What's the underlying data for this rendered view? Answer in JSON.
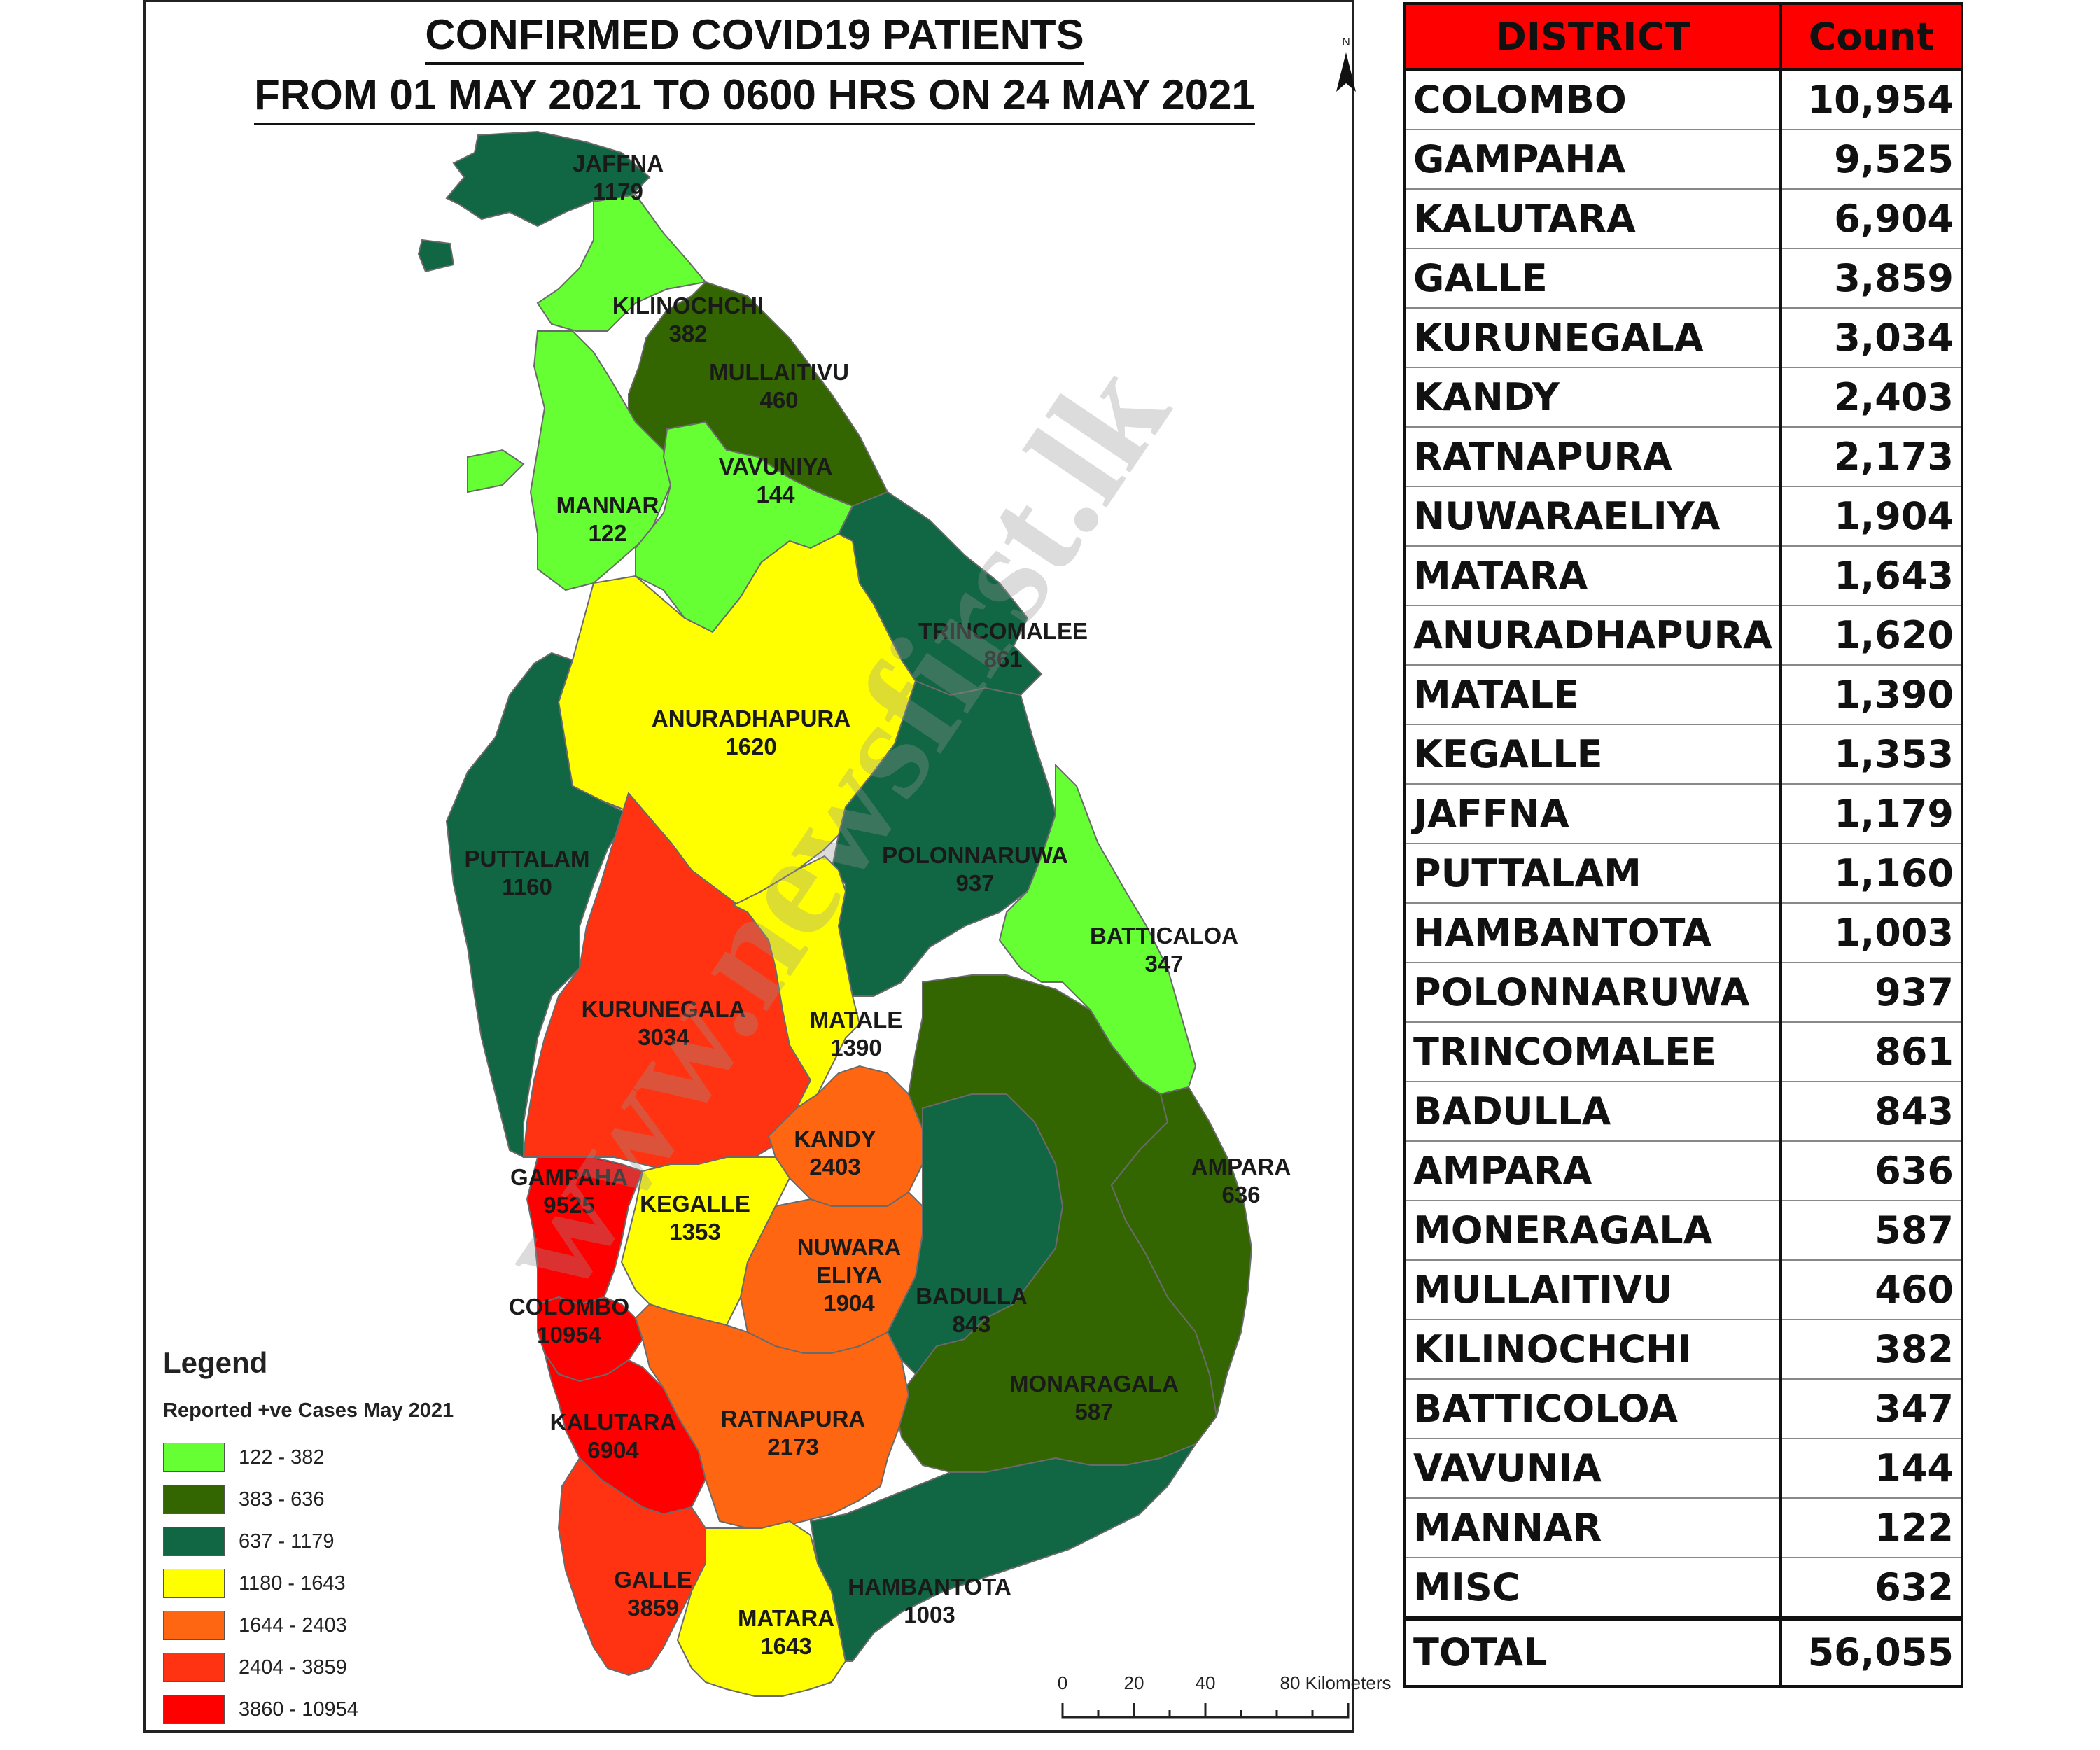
{
  "map": {
    "title_line1": "CONFIRMED COVID19 PATIENTS",
    "title_line2": "FROM 01 MAY 2021 TO 0600 HRS ON 24 MAY 2021",
    "north_label": "N",
    "colors": {
      "c1": "#66ff33",
      "c2": "#336600",
      "c3": "#116644",
      "c4": "#ffff00",
      "c5": "#ff6611",
      "c6": "#ff3311",
      "c7": "#ff0000"
    },
    "districts": [
      {
        "name": "JAFFNA",
        "value": "1179",
        "class": "c3"
      },
      {
        "name": "KILINOCHCHI",
        "value": "382",
        "class": "c1"
      },
      {
        "name": "MULLAITIVU",
        "value": "460",
        "class": "c2"
      },
      {
        "name": "VAVUNIYA",
        "value": "144",
        "class": "c1"
      },
      {
        "name": "MANNAR",
        "value": "122",
        "class": "c1"
      },
      {
        "name": "TRINCOMALEE",
        "value": "861",
        "class": "c3"
      },
      {
        "name": "ANURADHAPURA",
        "value": "1620",
        "class": "c4"
      },
      {
        "name": "PUTTALAM",
        "value": "1160",
        "class": "c3"
      },
      {
        "name": "POLONNARUWA",
        "value": "937",
        "class": "c3"
      },
      {
        "name": "BATTICALOA",
        "value": "347",
        "class": "c1"
      },
      {
        "name": "KURUNEGALA",
        "value": "3034",
        "class": "c6"
      },
      {
        "name": "MATALE",
        "value": "1390",
        "class": "c4"
      },
      {
        "name": "KANDY",
        "value": "2403",
        "class": "c5"
      },
      {
        "name": "AMPARA",
        "value": "636",
        "class": "c2"
      },
      {
        "name": "GAMPAHA",
        "value": "9525",
        "class": "c7"
      },
      {
        "name": "KEGALLE",
        "value": "1353",
        "class": "c4"
      },
      {
        "name": "NUWARA",
        "name2": "ELIYA",
        "value": "1904",
        "class": "c5"
      },
      {
        "name": "BADULLA",
        "value": "843",
        "class": "c3"
      },
      {
        "name": "COLOMBO",
        "value": "10954",
        "class": "c7"
      },
      {
        "name": "MONARAGALA",
        "value": "587",
        "class": "c2"
      },
      {
        "name": "KALUTARA",
        "value": "6904",
        "class": "c7"
      },
      {
        "name": "RATNAPURA",
        "value": "2173",
        "class": "c5"
      },
      {
        "name": "GALLE",
        "value": "3859",
        "class": "c6"
      },
      {
        "name": "HAMBANTOTA",
        "value": "1003",
        "class": "c3"
      },
      {
        "name": "MATARA",
        "value": "1643",
        "class": "c4"
      }
    ]
  },
  "legend": {
    "title": "Legend",
    "subtitle": "Reported +ve Cases May 2021",
    "items": [
      {
        "label": "122 - 382",
        "color": "#66ff33"
      },
      {
        "label": "383 - 636",
        "color": "#336600"
      },
      {
        "label": "637 - 1179",
        "color": "#116644"
      },
      {
        "label": "1180 - 1643",
        "color": "#ffff00"
      },
      {
        "label": "1644 - 2403",
        "color": "#ff6611"
      },
      {
        "label": "2404 - 3859",
        "color": "#ff3311"
      },
      {
        "label": "3860 - 10954",
        "color": "#ff0000"
      }
    ]
  },
  "scale": {
    "t0": "0",
    "t1": "20",
    "t2": "40",
    "t3": "80 Kilometers"
  },
  "watermark": "www.newsfirst.lk",
  "table": {
    "header_district": "DISTRICT",
    "header_count": "Count",
    "rows": [
      {
        "district": "COLOMBO",
        "count": "10,954"
      },
      {
        "district": "GAMPAHA",
        "count": "9,525"
      },
      {
        "district": "KALUTARA",
        "count": "6,904"
      },
      {
        "district": "GALLE",
        "count": "3,859"
      },
      {
        "district": "KURUNEGALA",
        "count": "3,034"
      },
      {
        "district": "KANDY",
        "count": "2,403"
      },
      {
        "district": "RATNAPURA",
        "count": "2,173"
      },
      {
        "district": "NUWARAELIYA",
        "count": "1,904"
      },
      {
        "district": "MATARA",
        "count": "1,643"
      },
      {
        "district": "ANURADHAPURA",
        "count": "1,620"
      },
      {
        "district": "MATALE",
        "count": "1,390"
      },
      {
        "district": "KEGALLE",
        "count": "1,353"
      },
      {
        "district": "JAFFNA",
        "count": "1,179"
      },
      {
        "district": "PUTTALAM",
        "count": "1,160"
      },
      {
        "district": "HAMBANTOTA",
        "count": "1,003"
      },
      {
        "district": "POLONNARUWA",
        "count": "937"
      },
      {
        "district": "TRINCOMALEE",
        "count": "861"
      },
      {
        "district": "BADULLA",
        "count": "843"
      },
      {
        "district": "AMPARA",
        "count": "636"
      },
      {
        "district": "MONERAGALA",
        "count": "587"
      },
      {
        "district": "MULLAITIVU",
        "count": "460"
      },
      {
        "district": "KILINOCHCHI",
        "count": "382"
      },
      {
        "district": "BATTICOLOA",
        "count": "347"
      },
      {
        "district": "VAVUNIA",
        "count": "144"
      },
      {
        "district": "MANNAR",
        "count": "122"
      },
      {
        "district": "MISC",
        "count": "632"
      }
    ],
    "total_label": "TOTAL",
    "total_value": "56,055"
  }
}
